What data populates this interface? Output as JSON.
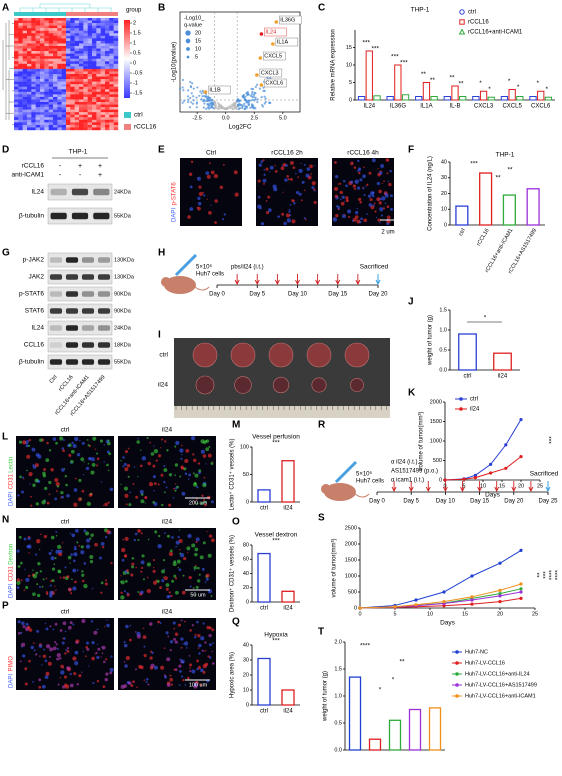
{
  "labels": [
    "A",
    "B",
    "C",
    "D",
    "E",
    "F",
    "G",
    "H",
    "I",
    "J",
    "K",
    "L",
    "M",
    "N",
    "O",
    "P",
    "Q",
    "R",
    "S",
    "T"
  ],
  "A": {
    "legend_title": "group",
    "scale_ticks": [
      2,
      1.5,
      1,
      0.5,
      0,
      -0.5,
      -1,
      -1.5
    ],
    "groups": [
      "ctrl",
      "rCCL16"
    ]
  },
  "B": {
    "legend_title": [
      "-Log10_",
      "q-value"
    ],
    "legend_ticks": [
      20,
      15,
      10,
      5
    ],
    "ylabel": "-Log10(pvalue)",
    "xlabel": "Log2FC",
    "xlim": [
      -4,
      6.5
    ],
    "xticks": [
      {
        "value": -2.5,
        "label": "-2.5"
      },
      {
        "value": 0,
        "label": "0.0"
      },
      {
        "value": 2.5,
        "label": "2.5"
      },
      {
        "value": 5,
        "label": "5.0"
      }
    ],
    "genes": [
      "IL36G",
      "IL24",
      "IL1A",
      "CXCL5",
      "CXCL3",
      "CXCL6",
      "IL1B"
    ]
  },
  "C": {
    "type": "bar",
    "title": "THP-1",
    "ylabel": "Relative mRNA expression",
    "categories": [
      "IL24",
      "IL36G",
      "IL1A",
      "IL-B",
      "CXCL3",
      "CXCL5",
      "CXCL6"
    ],
    "series": [
      {
        "name": "ctrl",
        "color": "#2a3fd6",
        "values": [
          1,
          1,
          1,
          1,
          1,
          1,
          1
        ]
      },
      {
        "name": "rCCL16",
        "color": "#e01e1e",
        "values": [
          14,
          10,
          5,
          4,
          2.5,
          3,
          2.5
        ]
      },
      {
        "name": "rCCL16+anti-ICAM1",
        "color": "#2eaa3a",
        "values": [
          1.2,
          1.5,
          1,
          1,
          0.8,
          1,
          0.8
        ]
      }
    ],
    "ylim": [
      0,
      20
    ],
    "yticks": [
      0,
      5,
      10,
      15
    ],
    "annotations": [
      "***",
      "***",
      "***",
      "***",
      "**",
      "**",
      "**",
      "**",
      "*",
      "*",
      "*",
      "*",
      "*",
      "*"
    ]
  },
  "D": {
    "title": "THP-1",
    "conditions": [
      {
        "name": "rCCL16",
        "signs": [
          "-",
          "+",
          "+"
        ]
      },
      {
        "name": "anti-ICAM1",
        "signs": [
          "-",
          "-",
          "+"
        ]
      }
    ],
    "bands": [
      {
        "name": "IL24",
        "size": "24KDa"
      },
      {
        "name": "β-tubulin",
        "size": "55KDa"
      }
    ]
  },
  "E": {
    "images": [
      "Ctrl",
      "rCCL16 2h",
      "rCCL16 4h"
    ],
    "channels": [
      "DAPI",
      "p-STAT6"
    ],
    "scale": "2 um"
  },
  "F": {
    "type": "bar",
    "title": "THP-1",
    "ylabel": "Concentration of IL24 (ng/L)",
    "categories": [
      "ctrl",
      "rCCL16",
      "rCCL16+anti-ICAM1",
      "rCCL16+AS1517499"
    ],
    "values": [
      12,
      33,
      19,
      23
    ],
    "colors": [
      "#2a3fd6",
      "#e01e1e",
      "#2eaa3a",
      "#9b30d9"
    ],
    "ylim": [
      0,
      40
    ],
    "yticks": [
      0,
      10,
      20,
      30,
      40
    ],
    "annotations": [
      "***",
      "**",
      "**"
    ]
  },
  "G": {
    "bands": [
      {
        "name": "p-JAK2",
        "size": "130KDa"
      },
      {
        "name": "JAK2",
        "size": "130KDa"
      },
      {
        "name": "p-STAT6",
        "size": "90KDa"
      },
      {
        "name": "STAT6",
        "size": "90KDa"
      },
      {
        "name": "IL24",
        "size": "24KDa"
      },
      {
        "name": "CCL16",
        "size": "18KDa"
      },
      {
        "name": "β-tubulin",
        "size": "55KDa"
      }
    ],
    "lanes": [
      "Ctrl",
      "rCCL16",
      "rCCL16+anti-ICAM1",
      "rCCL16+AS1517499"
    ]
  },
  "H": {
    "cells": [
      "5×10⁶",
      "Huh7 cells"
    ],
    "treatments": [
      "pbs/il24 (i.t.)"
    ],
    "end": "Sacrificed",
    "days": [
      "Day 0",
      "Day 5",
      "Day 10",
      "Day 15",
      "Day 20"
    ]
  },
  "I": {
    "rows": [
      "ctrl",
      "il24"
    ]
  },
  "J": {
    "type": "bar",
    "ylabel": "weight of tumor (g)",
    "categories": [
      "ctrl",
      "il24"
    ],
    "values": [
      0.9,
      0.42
    ],
    "colors": [
      "#2a3fd6",
      "#e01e1e"
    ],
    "ylim": [
      0,
      1.5
    ],
    "yticks": [
      {
        "value": 0,
        "label": "0.0"
      },
      {
        "value": 0.5,
        "label": "0.5"
      },
      {
        "value": 1,
        "label": "1.0"
      },
      {
        "value": 1.5,
        "label": "1.5"
      }
    ],
    "annotations": [
      "*"
    ]
  },
  "K": {
    "type": "line",
    "ylabel": "volume of tumor(mm³)",
    "xlabel": "Days",
    "x": [
      0,
      5,
      8,
      12,
      16,
      20
    ],
    "series": [
      {
        "name": "ctrl",
        "color": "#2a3fd6",
        "values": [
          0,
          30,
          120,
          400,
          900,
          1550
        ]
      },
      {
        "name": "il24",
        "color": "#e01e1e",
        "values": [
          0,
          20,
          60,
          180,
          300,
          600
        ]
      }
    ],
    "xlim": [
      0,
      25
    ],
    "xticks": [
      0,
      5,
      10,
      15,
      20,
      25
    ],
    "ylim": [
      0,
      2000
    ],
    "yticks": [
      0,
      500,
      1000,
      1500,
      2000
    ],
    "annotations": [
      "***"
    ]
  },
  "L": {
    "images": [
      "ctrl",
      "il24"
    ],
    "channels": [
      "DAPI",
      "CD31",
      "Lectin"
    ],
    "scale": "200 um"
  },
  "M": {
    "type": "bar",
    "title": "Vessel perfusion",
    "ylabel": "Lectin⁺ CD31⁺ vessels (%)",
    "categories": [
      "ctrl",
      "il24"
    ],
    "values": [
      22,
      75
    ],
    "colors": [
      "#2a3fd6",
      "#e01e1e"
    ],
    "ylim": [
      0,
      100
    ],
    "yticks": [
      0,
      50,
      100
    ],
    "annotations": [
      "***"
    ]
  },
  "N": {
    "images": [
      "ctrl",
      "il24"
    ],
    "channels": [
      "DAPI",
      "CD31",
      "Dextron"
    ],
    "scale": "50 um"
  },
  "O": {
    "type": "bar",
    "title": "Vessel dextron",
    "ylabel": "Dextron⁺ CD31⁺ vessels (%)",
    "categories": [
      "ctrl",
      "il24"
    ],
    "values": [
      68,
      15
    ],
    "colors": [
      "#2a3fd6",
      "#e01e1e"
    ],
    "ylim": [
      0,
      80
    ],
    "yticks": [
      0,
      20,
      40,
      60,
      80
    ],
    "annotations": [
      "***"
    ]
  },
  "P": {
    "images": [
      "ctrl",
      "il24"
    ],
    "channels": [
      "DAPI",
      "PIMO"
    ],
    "scale": "100 um"
  },
  "Q": {
    "type": "bar",
    "title": "Hypoxia",
    "ylabel": "Hypoxic area (%)",
    "categories": [
      "ctrl",
      "il24"
    ],
    "values": [
      31,
      10
    ],
    "colors": [
      "#2a3fd6",
      "#e01e1e"
    ],
    "ylim": [
      0,
      40
    ],
    "yticks": [
      0,
      10,
      20,
      30,
      40
    ],
    "annotations": [
      "***"
    ]
  },
  "R": {
    "cells": [
      "5×10⁶",
      "Huh7 cells"
    ],
    "treatments": [
      "α il24 (i.t.)",
      "AS1517499 (p.o.)",
      "α icam1 (i.t.)"
    ],
    "end": "Sacrificed",
    "days": [
      "Day 0",
      "Day 5",
      "Day 10",
      "Day 15",
      "Day 20",
      "Day 25"
    ]
  },
  "S": {
    "type": "line",
    "ylabel": "volume of tumor(mm³)",
    "xlabel": "Days",
    "x": [
      0,
      5,
      8,
      12,
      16,
      20,
      23
    ],
    "series": [
      {
        "color": "#1f3fd0",
        "values": [
          0,
          80,
          250,
          500,
          1000,
          1400,
          1800
        ]
      },
      {
        "color": "#e01e1e",
        "values": [
          0,
          20,
          40,
          70,
          120,
          200,
          300
        ]
      },
      {
        "color": "#2eaa3a",
        "values": [
          0,
          30,
          80,
          150,
          300,
          450,
          600
        ]
      },
      {
        "color": "#9b30d9",
        "values": [
          0,
          30,
          70,
          140,
          250,
          380,
          500
        ]
      },
      {
        "color": "#f0901a",
        "values": [
          0,
          40,
          100,
          200,
          350,
          550,
          750
        ]
      }
    ],
    "xlim": [
      0,
      25
    ],
    "xticks": [
      0,
      5,
      10,
      15,
      20,
      25
    ],
    "ylim": [
      0,
      2500
    ],
    "yticks": [
      0,
      500,
      1000,
      1500,
      2000,
      2500
    ],
    "annotations": [
      "**",
      "***",
      "****",
      "****"
    ]
  },
  "T": {
    "type": "bar",
    "ylabel": "weight of tumor (g)",
    "categories": [
      "Huh7-NC",
      "Huh7-LV-CCL16",
      "Huh7-LV-CCL16+anti-IL24",
      "Huh7-LV-CCL16+AS1517499",
      "Huh7-LV-CCL16+anti-ICAM1"
    ],
    "values": [
      1.35,
      0.2,
      0.55,
      0.75,
      0.78
    ],
    "colors": [
      "#1f3fd0",
      "#e01e1e",
      "#2eaa3a",
      "#9b30d9",
      "#f0901a"
    ],
    "ylim": [
      0,
      2
    ],
    "yticks": [
      {
        "value": 0,
        "label": "0.0"
      },
      {
        "value": 0.5,
        "label": "0.5"
      },
      {
        "value": 1,
        "label": "1.0"
      },
      {
        "value": 1.5,
        "label": "1.5"
      },
      {
        "value": 2,
        "label": "2.0"
      }
    ],
    "annotations": [
      "****",
      "*",
      "*",
      "**"
    ]
  }
}
